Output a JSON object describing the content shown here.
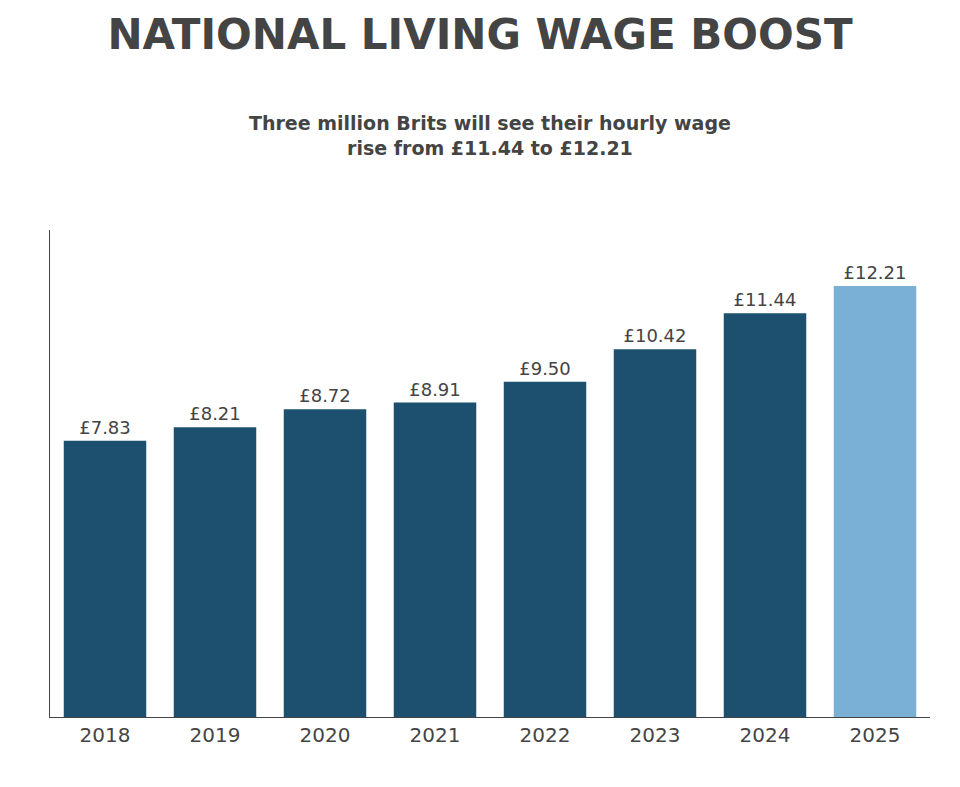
{
  "chart_data": {
    "type": "bar",
    "title": "NATIONAL LIVING WAGE BOOST",
    "subtitle": "Three million Brits will see their hourly wage\nrise from £11.44 to £12.21",
    "categories": [
      "2018",
      "2019",
      "2020",
      "2021",
      "2022",
      "2023",
      "2024",
      "2025"
    ],
    "values": [
      7.83,
      8.21,
      8.72,
      8.91,
      9.5,
      10.42,
      11.44,
      12.21
    ],
    "value_labels": [
      "£7.83",
      "£8.21",
      "£8.72",
      "£8.91",
      "£9.50",
      "£10.42",
      "£11.44",
      "£12.21"
    ],
    "data_labels": true,
    "colors": [
      "#1d4f6e",
      "#1d4f6e",
      "#1d4f6e",
      "#1d4f6e",
      "#1d4f6e",
      "#1d4f6e",
      "#1d4f6e",
      "#7ab0d5"
    ],
    "ylim": [
      0,
      13.8
    ],
    "yticks": [],
    "grid": false,
    "tick_labels": "x"
  }
}
